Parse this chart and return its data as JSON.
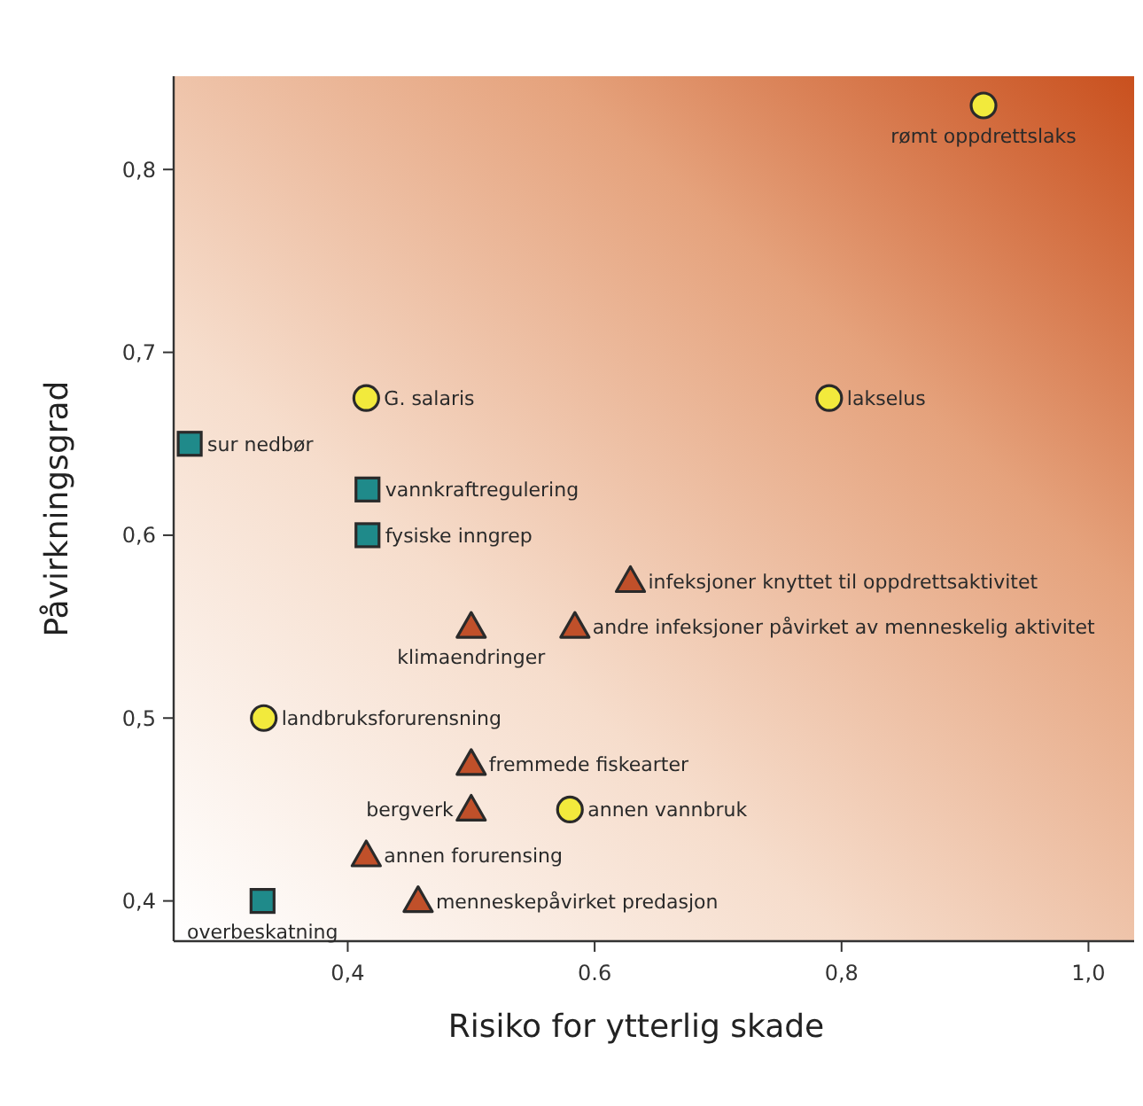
{
  "chart_data": {
    "type": "scatter",
    "xlabel": "Risiko for ytterlig skade",
    "ylabel": "Påvirkningsgrad",
    "xlim": [
      0.259,
      1.037
    ],
    "ylim": [
      0.378,
      0.851
    ],
    "xticks": [
      {
        "value": 0.4,
        "label": "0,4"
      },
      {
        "value": 0.6,
        "label": "0.6"
      },
      {
        "value": 0.8,
        "label": "0,8"
      },
      {
        "value": 1.0,
        "label": "1,0"
      }
    ],
    "yticks": [
      {
        "value": 0.4,
        "label": "0,4"
      },
      {
        "value": 0.5,
        "label": "0,5"
      },
      {
        "value": 0.6,
        "label": "0,6"
      },
      {
        "value": 0.7,
        "label": "0,7"
      },
      {
        "value": 0.8,
        "label": "0,8"
      }
    ],
    "grid": false,
    "series": [
      {
        "color": "#f2ea3c",
        "marker": "circle",
        "x": [
          0.915,
          0.415,
          0.79,
          0.332,
          0.58
        ],
        "values": [
          0.835,
          0.675,
          0.675,
          0.5,
          0.45
        ]
      },
      {
        "color": "#1f8a8a",
        "marker": "square",
        "x": [
          0.272,
          0.416,
          0.416,
          0.331
        ],
        "values": [
          0.65,
          0.625,
          0.6,
          0.4
        ]
      },
      {
        "color": "#c0502a",
        "marker": "triangle",
        "x": [
          0.629,
          0.5,
          0.584,
          0.5,
          0.5,
          0.415,
          0.457
        ],
        "values": [
          0.575,
          0.55,
          0.55,
          0.475,
          0.45,
          0.425,
          0.4
        ]
      }
    ],
    "annotations": [
      {
        "text": "rømt oppdrettslaks",
        "x": 0.915,
        "y": 0.835
      },
      {
        "text": "G. salaris",
        "x": 0.415,
        "y": 0.675
      },
      {
        "text": "lakselus",
        "x": 0.79,
        "y": 0.675
      },
      {
        "text": "landbruksforurensning",
        "x": 0.332,
        "y": 0.5
      },
      {
        "text": "annen vannbruk",
        "x": 0.58,
        "y": 0.45
      },
      {
        "text": "sur nedbør",
        "x": 0.272,
        "y": 0.65
      },
      {
        "text": "vannkraftregulering",
        "x": 0.416,
        "y": 0.625
      },
      {
        "text": "fysiske inngrep",
        "x": 0.416,
        "y": 0.6
      },
      {
        "text": "overbeskatning",
        "x": 0.331,
        "y": 0.4
      },
      {
        "text": "infeksjoner knyttet til oppdrettsaktivitet",
        "x": 0.629,
        "y": 0.575
      },
      {
        "text": "klimaendringer",
        "x": 0.5,
        "y": 0.55
      },
      {
        "text": "andre infeksjoner påvirket av menneskelig aktivitet",
        "x": 0.584,
        "y": 0.55
      },
      {
        "text": "fremmede fiskearter",
        "x": 0.5,
        "y": 0.475
      },
      {
        "text": "bergverk",
        "x": 0.5,
        "y": 0.45
      },
      {
        "text": "annen forurensing",
        "x": 0.415,
        "y": 0.425
      },
      {
        "text": "menneskepåvirket predasjon",
        "x": 0.457,
        "y": 0.4
      }
    ]
  }
}
